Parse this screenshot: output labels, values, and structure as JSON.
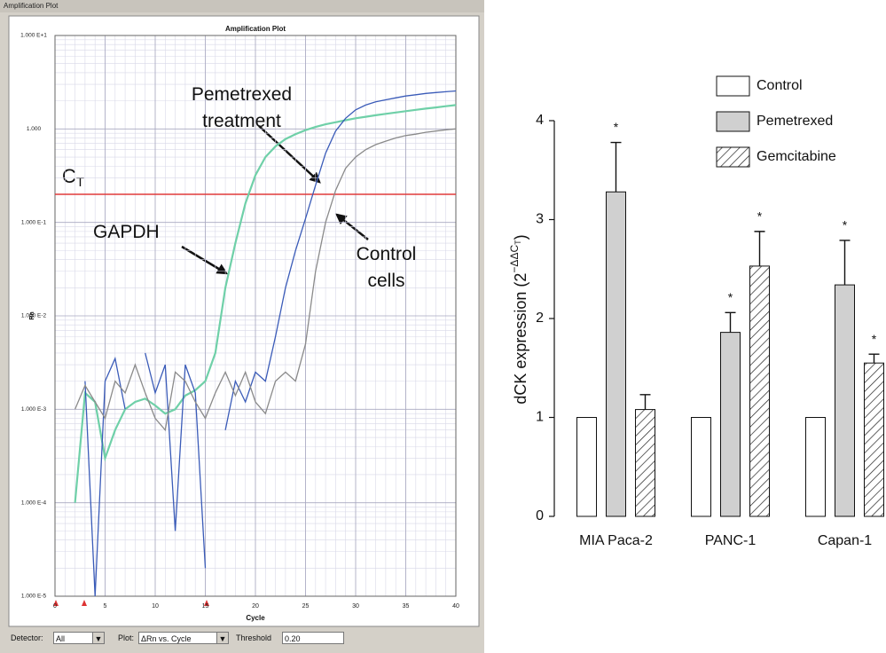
{
  "window_title": "Amplification Plot",
  "controls": {
    "detector_label": "Detector:",
    "detector_value": "All",
    "plot_label": "Plot:",
    "plot_value": "ΔRn vs. Cycle",
    "threshold_label": "Threshold"
  },
  "chart_data": [
    {
      "type": "line",
      "title": "Amplification Plot",
      "xlabel": "Cycle",
      "ylabel": "Rn",
      "yscale": "log",
      "grid": true,
      "xlim": [
        0,
        40
      ],
      "xticks": [
        0,
        5,
        10,
        15,
        20,
        25,
        30,
        35,
        40
      ],
      "ylim": [
        1e-05,
        10
      ],
      "yticks": [
        {
          "value": 1e-05,
          "label": "1.000 E-5"
        },
        {
          "value": 0.0001,
          "label": "1.000 E-4"
        },
        {
          "value": 0.001,
          "label": "1.000 E-3"
        },
        {
          "value": 0.01,
          "label": "1.000 E-2"
        },
        {
          "value": 0.1,
          "label": "1.000 E-1"
        },
        {
          "value": 1,
          "label": "1.000"
        },
        {
          "value": 10,
          "label": "1.000 E+1"
        }
      ],
      "threshold": {
        "value": 0.2,
        "label": "0.20"
      },
      "threshold_color": "#e03a3a",
      "threshold_text": [
        "C",
        "T"
      ],
      "x": [
        2,
        3,
        4,
        5,
        6,
        7,
        8,
        9,
        10,
        11,
        12,
        13,
        14,
        15,
        16,
        17,
        18,
        19,
        20,
        21,
        22,
        23,
        24,
        25,
        26,
        27,
        28,
        29,
        30,
        31,
        32,
        33,
        34,
        35,
        36,
        37,
        38,
        39,
        40
      ],
      "series": [
        {
          "name": "GAPDH",
          "color": "#6fd0a8",
          "values": [
            0.0001,
            0.0015,
            0.0012,
            0.0003,
            0.0006,
            0.001,
            0.0012,
            0.0013,
            0.0011,
            0.0009,
            0.001,
            0.0014,
            0.0016,
            0.002,
            0.004,
            0.02,
            0.06,
            0.16,
            0.32,
            0.5,
            0.65,
            0.78,
            0.88,
            0.97,
            1.05,
            1.12,
            1.18,
            1.24,
            1.3,
            1.35,
            1.4,
            1.45,
            1.5,
            1.55,
            1.6,
            1.65,
            1.7,
            1.75,
            1.8
          ]
        },
        {
          "name": "Pemetrexed treatment",
          "color": "#3a5bb8",
          "values": [
            null,
            0.002,
            1e-05,
            0.002,
            0.0035,
            0.001,
            null,
            0.004,
            0.0015,
            0.003,
            5e-05,
            0.003,
            0.0015,
            2e-05,
            null,
            0.0006,
            0.002,
            0.0012,
            0.0025,
            0.002,
            0.006,
            0.02,
            0.05,
            0.11,
            0.25,
            0.55,
            0.95,
            1.3,
            1.6,
            1.8,
            1.95,
            2.05,
            2.15,
            2.25,
            2.32,
            2.4,
            2.45,
            2.5,
            2.55
          ]
        },
        {
          "name": "Control cells",
          "color": "#8a8a8a",
          "values": [
            0.001,
            0.0018,
            0.0012,
            0.0008,
            0.002,
            0.0015,
            0.003,
            0.0015,
            0.0008,
            0.0006,
            0.0025,
            0.002,
            0.0012,
            0.0008,
            0.0015,
            0.0025,
            0.0014,
            0.0025,
            0.0012,
            0.0009,
            0.002,
            0.0025,
            0.002,
            0.005,
            0.03,
            0.1,
            0.22,
            0.38,
            0.5,
            0.6,
            0.68,
            0.74,
            0.8,
            0.85,
            0.88,
            0.92,
            0.95,
            0.98,
            1.0
          ]
        }
      ]
    },
    {
      "type": "bar",
      "ylabel": [
        "dCK expression (2",
        "−ΔΔC",
        "T",
        ")"
      ],
      "legend": "top-right",
      "ylim": [
        0,
        4
      ],
      "yticks": [
        0,
        1,
        2,
        3,
        4
      ],
      "categories": [
        "MIA Paca-2",
        "PANC-1",
        "Capan-1"
      ],
      "series": [
        {
          "name": "Control",
          "color": "#ffffff",
          "values": [
            1,
            1,
            1
          ]
        },
        {
          "name": "Pemetrexed",
          "color": "#d0d0d0",
          "values": [
            3.28,
            1.86,
            2.34
          ],
          "errors": [
            0.5,
            0.2,
            0.45
          ],
          "significance": [
            "*",
            "*",
            "*"
          ]
        },
        {
          "name": "Gemcitabine",
          "color": "#ffffff",
          "pattern": "hatch",
          "values": [
            1.08,
            2.53,
            1.55
          ],
          "errors": [
            0.15,
            0.35,
            0.09
          ],
          "significance": [
            null,
            "*",
            "*"
          ]
        }
      ]
    }
  ]
}
